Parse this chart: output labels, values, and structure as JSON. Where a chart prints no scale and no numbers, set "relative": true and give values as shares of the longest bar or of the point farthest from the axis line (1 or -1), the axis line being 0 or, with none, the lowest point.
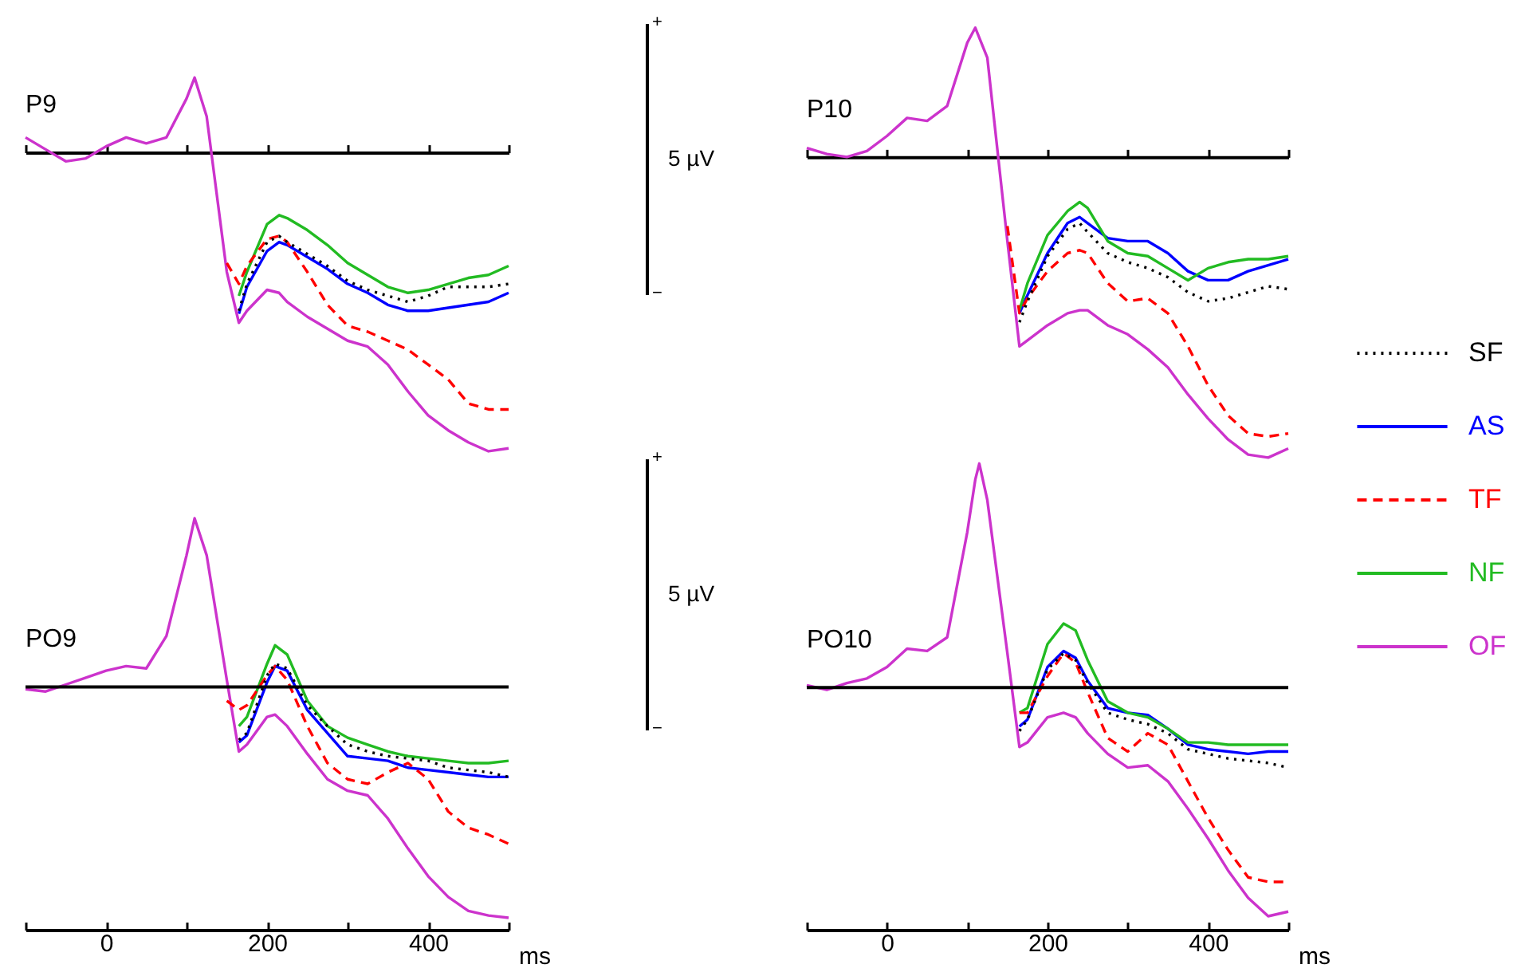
{
  "chart_data": [
    {
      "type": "line",
      "title": "P9",
      "relative": true,
      "tick_labels": false,
      "xlim": [
        -100,
        500
      ],
      "xticks": [
        {
          "value": -100,
          "label": null
        },
        0,
        {
          "value": 100,
          "label": null
        },
        200,
        {
          "value": 300,
          "label": null
        },
        400,
        {
          "value": 500,
          "label": null
        }
      ],
      "x": [
        -100,
        -75,
        -50,
        -25,
        0,
        25,
        50,
        75,
        100,
        110,
        125,
        150,
        165,
        175,
        200,
        215,
        225,
        250,
        275,
        300,
        325,
        350,
        375,
        400,
        425,
        450,
        475,
        500
      ],
      "series": [
        {
          "color": "#000000",
          "line_style": "dotted",
          "values": [
            null,
            null,
            null,
            null,
            null,
            null,
            null,
            null,
            null,
            null,
            null,
            null,
            -0.53,
            -0.44,
            -0.3,
            -0.28,
            -0.3,
            -0.34,
            -0.38,
            -0.43,
            -0.46,
            -0.48,
            -0.5,
            -0.48,
            -0.45,
            -0.45,
            -0.45,
            -0.44
          ]
        },
        {
          "color": "#0000ff",
          "line_style": "solid",
          "values": [
            null,
            null,
            null,
            null,
            null,
            null,
            null,
            null,
            null,
            null,
            null,
            null,
            -0.54,
            -0.45,
            -0.33,
            -0.3,
            -0.31,
            -0.35,
            -0.39,
            -0.44,
            -0.47,
            -0.51,
            -0.53,
            -0.53,
            -0.52,
            -0.51,
            -0.5,
            -0.47
          ]
        },
        {
          "color": "#ff0000",
          "line_style": "dashed",
          "values": [
            null,
            null,
            null,
            null,
            null,
            null,
            null,
            null,
            null,
            null,
            null,
            -0.37,
            -0.44,
            -0.38,
            -0.29,
            -0.28,
            -0.3,
            -0.4,
            -0.51,
            -0.58,
            -0.6,
            -0.63,
            -0.66,
            -0.71,
            -0.76,
            -0.84,
            -0.86,
            -0.86
          ]
        },
        {
          "color": "#22bb22",
          "line_style": "solid",
          "values": [
            null,
            null,
            null,
            null,
            null,
            null,
            null,
            null,
            null,
            null,
            null,
            null,
            -0.48,
            -0.4,
            -0.24,
            -0.21,
            -0.22,
            -0.26,
            -0.31,
            -0.37,
            -0.41,
            -0.45,
            -0.47,
            -0.46,
            -0.44,
            -0.42,
            -0.41,
            -0.38
          ]
        },
        {
          "color": "#cc33cc",
          "line_style": "solid",
          "values": [
            0.05,
            0.01,
            -0.03,
            -0.02,
            0.02,
            0.05,
            0.03,
            0.05,
            0.18,
            0.25,
            0.12,
            -0.4,
            -0.57,
            -0.53,
            -0.46,
            -0.47,
            -0.5,
            -0.55,
            -0.59,
            -0.63,
            -0.65,
            -0.71,
            -0.8,
            -0.88,
            -0.93,
            -0.97,
            -1.0,
            -0.99
          ]
        }
      ]
    },
    {
      "type": "line",
      "title": "P10",
      "relative": true,
      "tick_labels": false,
      "legend": "right",
      "xlim": [
        -100,
        500
      ],
      "xticks": [
        {
          "value": -100,
          "label": null
        },
        0,
        {
          "value": 100,
          "label": null
        },
        200,
        {
          "value": 300,
          "label": null
        },
        400,
        {
          "value": 500,
          "label": null
        }
      ],
      "annotations": [
        "+",
        "5 µV",
        "−"
      ],
      "x": [
        -100,
        -75,
        -50,
        -25,
        0,
        25,
        50,
        75,
        100,
        110,
        125,
        150,
        165,
        175,
        200,
        225,
        240,
        250,
        275,
        300,
        325,
        350,
        375,
        400,
        425,
        450,
        475,
        500
      ],
      "series": [
        {
          "name": "SF",
          "color": "#000000",
          "line_style": "dotted",
          "values": [
            null,
            null,
            null,
            null,
            null,
            null,
            null,
            null,
            null,
            null,
            null,
            null,
            -0.55,
            -0.48,
            -0.33,
            -0.24,
            -0.22,
            -0.25,
            -0.32,
            -0.35,
            -0.37,
            -0.4,
            -0.45,
            -0.48,
            -0.47,
            -0.45,
            -0.43,
            -0.44
          ]
        },
        {
          "name": "AS",
          "color": "#0000ff",
          "line_style": "solid",
          "values": [
            null,
            null,
            null,
            null,
            null,
            null,
            null,
            null,
            null,
            null,
            null,
            null,
            -0.52,
            -0.46,
            -0.32,
            -0.22,
            -0.2,
            -0.22,
            -0.27,
            -0.28,
            -0.28,
            -0.32,
            -0.38,
            -0.41,
            -0.41,
            -0.38,
            -0.36,
            -0.34
          ]
        },
        {
          "name": "TF",
          "color": "#ff0000",
          "line_style": "dashed",
          "values": [
            null,
            null,
            null,
            null,
            null,
            null,
            null,
            null,
            null,
            null,
            null,
            -0.23,
            -0.52,
            -0.47,
            -0.38,
            -0.32,
            -0.31,
            -0.32,
            -0.42,
            -0.48,
            -0.47,
            -0.52,
            -0.63,
            -0.76,
            -0.86,
            -0.92,
            -0.93,
            -0.92
          ]
        },
        {
          "name": "NF",
          "color": "#22bb22",
          "line_style": "solid",
          "values": [
            null,
            null,
            null,
            null,
            null,
            null,
            null,
            null,
            null,
            null,
            null,
            null,
            -0.51,
            -0.42,
            -0.26,
            -0.18,
            -0.15,
            -0.17,
            -0.28,
            -0.32,
            -0.33,
            -0.37,
            -0.41,
            -0.37,
            -0.35,
            -0.34,
            -0.34,
            -0.33
          ]
        },
        {
          "name": "OF",
          "color": "#cc33cc",
          "line_style": "solid",
          "values": [
            0.03,
            0.01,
            0.0,
            0.02,
            0.07,
            0.13,
            0.12,
            0.17,
            0.38,
            0.43,
            0.33,
            -0.28,
            -0.63,
            -0.61,
            -0.56,
            -0.52,
            -0.51,
            -0.51,
            -0.56,
            -0.59,
            -0.64,
            -0.7,
            -0.79,
            -0.87,
            -0.94,
            -0.99,
            -1.0,
            -0.97
          ]
        }
      ]
    },
    {
      "type": "line",
      "title": "PO9",
      "xlabel": "ms",
      "relative": true,
      "tick_labels": "x",
      "xlim": [
        -100,
        500
      ],
      "xticks": [
        {
          "value": -100,
          "label": null
        },
        0,
        {
          "value": 100,
          "label": null
        },
        200,
        {
          "value": 300,
          "label": null
        },
        400,
        {
          "value": 500,
          "label": null
        }
      ],
      "ref_lines": [
        {
          "axis": "y",
          "value": 0
        }
      ],
      "x": [
        -100,
        -75,
        -50,
        -25,
        0,
        25,
        50,
        75,
        100,
        110,
        125,
        150,
        165,
        175,
        200,
        210,
        225,
        250,
        275,
        300,
        325,
        350,
        375,
        400,
        425,
        450,
        475,
        500
      ],
      "series": [
        {
          "color": "#000000",
          "line_style": "dotted",
          "values": [
            null,
            null,
            null,
            null,
            null,
            null,
            null,
            null,
            null,
            null,
            null,
            null,
            -0.23,
            -0.2,
            0.05,
            0.1,
            0.08,
            -0.08,
            -0.17,
            -0.25,
            -0.28,
            -0.3,
            -0.31,
            -0.32,
            -0.35,
            -0.36,
            -0.37,
            -0.39
          ]
        },
        {
          "color": "#0000ff",
          "line_style": "solid",
          "values": [
            null,
            null,
            null,
            null,
            null,
            null,
            null,
            null,
            null,
            null,
            null,
            null,
            -0.24,
            -0.21,
            0.02,
            0.09,
            0.07,
            -0.1,
            -0.2,
            -0.3,
            -0.31,
            -0.32,
            -0.35,
            -0.36,
            -0.37,
            -0.38,
            -0.39,
            -0.39
          ]
        },
        {
          "color": "#ff0000",
          "line_style": "dashed",
          "values": [
            null,
            null,
            null,
            null,
            null,
            null,
            null,
            null,
            null,
            null,
            null,
            -0.06,
            -0.1,
            -0.08,
            0.05,
            0.09,
            0.03,
            -0.17,
            -0.33,
            -0.4,
            -0.42,
            -0.37,
            -0.33,
            -0.4,
            -0.54,
            -0.61,
            -0.64,
            -0.68
          ]
        },
        {
          "color": "#22bb22",
          "line_style": "solid",
          "values": [
            null,
            null,
            null,
            null,
            null,
            null,
            null,
            null,
            null,
            null,
            null,
            null,
            -0.17,
            -0.13,
            0.1,
            0.18,
            0.14,
            -0.06,
            -0.17,
            -0.22,
            -0.25,
            -0.28,
            -0.3,
            -0.31,
            -0.32,
            -0.33,
            -0.33,
            -0.32
          ]
        },
        {
          "color": "#cc33cc",
          "line_style": "solid",
          "values": [
            -0.01,
            -0.02,
            0.01,
            0.04,
            0.07,
            0.09,
            0.08,
            0.22,
            0.57,
            0.73,
            0.57,
            0.03,
            -0.28,
            -0.25,
            -0.13,
            -0.12,
            -0.17,
            -0.29,
            -0.4,
            -0.45,
            -0.47,
            -0.57,
            -0.7,
            -0.82,
            -0.91,
            -0.97,
            -0.99,
            -1.0
          ]
        }
      ]
    },
    {
      "type": "line",
      "title": "PO10",
      "xlabel": "ms",
      "relative": true,
      "tick_labels": "x",
      "xlim": [
        -100,
        500
      ],
      "xticks": [
        {
          "value": -100,
          "label": null
        },
        0,
        {
          "value": 100,
          "label": null
        },
        200,
        {
          "value": 300,
          "label": null
        },
        400,
        {
          "value": 500,
          "label": null
        }
      ],
      "ref_lines": [
        {
          "axis": "y",
          "value": 0
        }
      ],
      "annotations": [
        "+",
        "5 µV",
        "−"
      ],
      "x": [
        -100,
        -75,
        -50,
        -25,
        0,
        25,
        50,
        75,
        100,
        110,
        115,
        125,
        150,
        165,
        175,
        200,
        220,
        235,
        250,
        275,
        300,
        325,
        350,
        375,
        400,
        425,
        450,
        475,
        500
      ],
      "series": [
        {
          "color": "#000000",
          "line_style": "dotted",
          "values": [
            null,
            null,
            null,
            null,
            null,
            null,
            null,
            null,
            null,
            null,
            null,
            null,
            null,
            -0.19,
            -0.14,
            0.08,
            0.15,
            0.12,
            0.02,
            -0.11,
            -0.14,
            -0.16,
            -0.2,
            -0.27,
            -0.29,
            -0.31,
            -0.32,
            -0.33,
            -0.35
          ]
        },
        {
          "color": "#0000ff",
          "line_style": "solid",
          "values": [
            null,
            null,
            null,
            null,
            null,
            null,
            null,
            null,
            null,
            null,
            null,
            null,
            null,
            -0.17,
            -0.14,
            0.09,
            0.16,
            0.13,
            0.03,
            -0.09,
            -0.11,
            -0.12,
            -0.18,
            -0.25,
            -0.27,
            -0.28,
            -0.29,
            -0.28,
            -0.28
          ]
        },
        {
          "color": "#ff0000",
          "line_style": "dashed",
          "values": [
            null,
            null,
            null,
            null,
            null,
            null,
            null,
            null,
            null,
            null,
            null,
            null,
            null,
            -0.11,
            -0.11,
            0.05,
            0.15,
            0.11,
            -0.02,
            -0.22,
            -0.28,
            -0.2,
            -0.25,
            -0.41,
            -0.57,
            -0.71,
            -0.83,
            -0.85,
            -0.85
          ]
        },
        {
          "color": "#22bb22",
          "line_style": "solid",
          "values": [
            null,
            null,
            null,
            null,
            null,
            null,
            null,
            null,
            null,
            null,
            null,
            null,
            null,
            -0.11,
            -0.09,
            0.19,
            0.28,
            0.25,
            0.12,
            -0.06,
            -0.11,
            -0.13,
            -0.18,
            -0.24,
            -0.24,
            -0.25,
            -0.25,
            -0.25,
            -0.25
          ]
        },
        {
          "color": "#cc33cc",
          "line_style": "solid",
          "values": [
            0.01,
            -0.01,
            0.02,
            0.04,
            0.09,
            0.17,
            0.16,
            0.22,
            0.68,
            0.91,
            0.98,
            0.82,
            0.15,
            -0.26,
            -0.24,
            -0.13,
            -0.11,
            -0.13,
            -0.2,
            -0.29,
            -0.35,
            -0.34,
            -0.41,
            -0.53,
            -0.66,
            -0.8,
            -0.92,
            -1.0,
            -0.98
          ]
        }
      ]
    }
  ]
}
